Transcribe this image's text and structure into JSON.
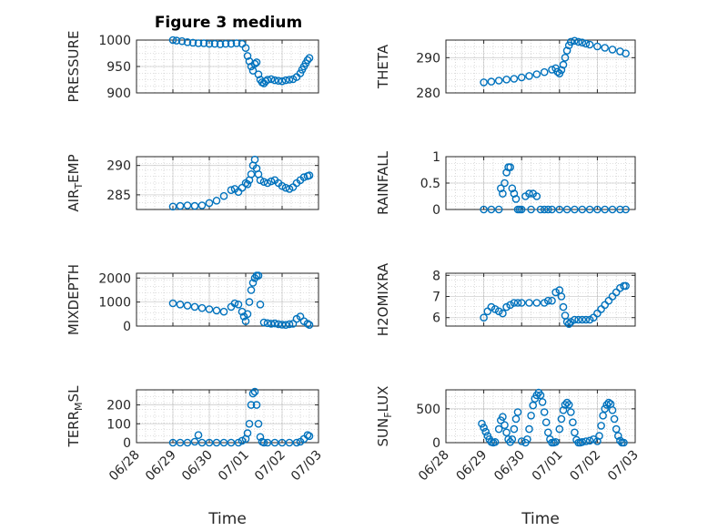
{
  "title": "Figure 3 medium",
  "xlabel": "Time",
  "colors": {
    "marker": "#0072bd",
    "axis": "#262626",
    "grid": "#b0b0b0"
  },
  "chart_data": [
    {
      "type": "scatter",
      "ylabel": "PRESSURE",
      "ylim": [
        900,
        1000
      ],
      "yticks": [
        "900",
        "950",
        "1000"
      ],
      "xlim": [
        "06/28",
        "07/03"
      ],
      "xticks": [],
      "grid": true,
      "x": [
        1.0,
        1.1,
        1.25,
        1.4,
        1.55,
        1.7,
        1.85,
        2.0,
        2.15,
        2.3,
        2.45,
        2.6,
        2.75,
        2.9,
        3.0,
        3.05,
        3.1,
        3.15,
        3.2,
        3.25,
        3.3,
        3.35,
        3.4,
        3.45,
        3.5,
        3.55,
        3.6,
        3.7,
        3.8,
        3.9,
        4.0,
        4.1,
        4.2,
        4.3,
        4.4,
        4.5,
        4.55,
        4.6,
        4.65,
        4.7,
        4.75
      ],
      "y": [
        1000,
        999,
        998,
        996,
        995,
        994,
        994,
        993,
        993,
        992,
        993,
        993,
        994,
        993,
        985,
        970,
        960,
        950,
        942,
        955,
        958,
        935,
        925,
        920,
        918,
        922,
        925,
        926,
        924,
        923,
        922,
        924,
        925,
        926,
        930,
        937,
        944,
        950,
        956,
        962,
        966
      ]
    },
    {
      "type": "scatter",
      "ylabel": "THETA",
      "ylim": [
        280,
        295
      ],
      "yticks": [
        "280",
        "290"
      ],
      "xlim": [
        "06/28",
        "07/03"
      ],
      "xticks": [],
      "grid": true,
      "x": [
        1.0,
        1.2,
        1.4,
        1.6,
        1.8,
        2.0,
        2.2,
        2.4,
        2.6,
        2.8,
        2.9,
        2.95,
        3.0,
        3.05,
        3.1,
        3.15,
        3.2,
        3.25,
        3.3,
        3.4,
        3.5,
        3.6,
        3.7,
        3.8,
        4.0,
        4.2,
        4.4,
        4.6,
        4.75
      ],
      "y": [
        283,
        283.2,
        283.5,
        283.8,
        284,
        284.4,
        284.8,
        285.3,
        285.9,
        286.6,
        287,
        286,
        285.5,
        286.5,
        288,
        290,
        292,
        293.5,
        294.5,
        294.8,
        294.5,
        294.3,
        294,
        293.7,
        293.2,
        292.8,
        292.3,
        291.8,
        291.2
      ]
    },
    {
      "type": "scatter",
      "ylabel": "AIR_TEMP",
      "ylim": [
        282.5,
        291.5
      ],
      "yticks": [
        "285",
        "290"
      ],
      "xlim": [
        "06/28",
        "07/03"
      ],
      "xticks": [],
      "grid": true,
      "x": [
        1.0,
        1.2,
        1.4,
        1.6,
        1.8,
        2.0,
        2.2,
        2.4,
        2.6,
        2.7,
        2.8,
        2.9,
        3.0,
        3.05,
        3.1,
        3.15,
        3.2,
        3.25,
        3.3,
        3.35,
        3.4,
        3.5,
        3.6,
        3.7,
        3.8,
        3.9,
        4.0,
        4.1,
        4.2,
        4.3,
        4.4,
        4.5,
        4.6,
        4.7,
        4.75
      ],
      "y": [
        283,
        283.1,
        283.2,
        283.1,
        283.2,
        283.6,
        284,
        284.8,
        285.8,
        286,
        285.5,
        286.2,
        287,
        286.8,
        287.5,
        288.5,
        290,
        291,
        289.5,
        288.5,
        287.5,
        287.2,
        287,
        287.3,
        287.5,
        287,
        286.5,
        286.2,
        286,
        286.3,
        287,
        287.5,
        288,
        288.2,
        288.3
      ]
    },
    {
      "type": "scatter",
      "ylabel": "RAINFALL",
      "ylim": [
        0,
        1
      ],
      "yticks": [
        "0",
        "0.5",
        "1"
      ],
      "xlim": [
        "06/28",
        "07/03"
      ],
      "xticks": [],
      "grid": true,
      "x": [
        1.0,
        1.2,
        1.4,
        1.45,
        1.5,
        1.55,
        1.6,
        1.65,
        1.7,
        1.75,
        1.8,
        1.85,
        1.9,
        1.95,
        2.0,
        2.1,
        2.2,
        2.25,
        2.3,
        2.4,
        2.5,
        2.6,
        2.7,
        2.8,
        3.0,
        3.2,
        3.4,
        3.6,
        3.8,
        4.0,
        4.2,
        4.4,
        4.6,
        4.75
      ],
      "y": [
        0,
        0,
        0,
        0.4,
        0.3,
        0.5,
        0.7,
        0.8,
        0.8,
        0.4,
        0.3,
        0.2,
        0,
        0,
        0,
        0.25,
        0.3,
        0,
        0.3,
        0.25,
        0,
        0,
        0,
        0,
        0,
        0,
        0,
        0,
        0,
        0,
        0,
        0,
        0,
        0
      ]
    },
    {
      "type": "scatter",
      "ylabel": "MIXDEPTH",
      "ylim": [
        0,
        2200
      ],
      "yticks": [
        "0",
        "1000",
        "2000"
      ],
      "xlim": [
        "06/28",
        "07/03"
      ],
      "xticks": [],
      "grid": true,
      "x": [
        1.0,
        1.2,
        1.4,
        1.6,
        1.8,
        2.0,
        2.2,
        2.4,
        2.6,
        2.7,
        2.8,
        2.9,
        2.95,
        3.0,
        3.05,
        3.1,
        3.15,
        3.2,
        3.25,
        3.3,
        3.35,
        3.4,
        3.5,
        3.6,
        3.7,
        3.8,
        3.9,
        4.0,
        4.1,
        4.2,
        4.3,
        4.4,
        4.5,
        4.6,
        4.7,
        4.75
      ],
      "y": [
        950,
        900,
        850,
        800,
        750,
        700,
        650,
        600,
        800,
        950,
        900,
        600,
        400,
        200,
        500,
        1000,
        1500,
        1800,
        2000,
        2100,
        2100,
        900,
        150,
        120,
        100,
        110,
        80,
        60,
        50,
        80,
        100,
        300,
        400,
        200,
        100,
        50
      ]
    },
    {
      "type": "scatter",
      "ylabel": "H2OMIXRA",
      "ylim": [
        5.6,
        8.1
      ],
      "yticks": [
        "6",
        "7",
        "8"
      ],
      "xlim": [
        "06/28",
        "07/03"
      ],
      "xticks": [],
      "grid": true,
      "x": [
        1.0,
        1.1,
        1.2,
        1.3,
        1.4,
        1.5,
        1.6,
        1.7,
        1.8,
        1.9,
        2.0,
        2.2,
        2.4,
        2.6,
        2.7,
        2.8,
        2.9,
        3.0,
        3.05,
        3.1,
        3.15,
        3.2,
        3.25,
        3.3,
        3.4,
        3.5,
        3.6,
        3.7,
        3.8,
        3.9,
        4.0,
        4.1,
        4.2,
        4.3,
        4.4,
        4.5,
        4.6,
        4.7,
        4.75
      ],
      "y": [
        6,
        6.3,
        6.5,
        6.4,
        6.3,
        6.2,
        6.5,
        6.6,
        6.7,
        6.7,
        6.7,
        6.7,
        6.7,
        6.7,
        6.8,
        6.8,
        7.2,
        7.3,
        7.0,
        6.5,
        6.1,
        5.8,
        5.7,
        5.8,
        5.9,
        5.9,
        5.9,
        5.9,
        5.9,
        6.0,
        6.2,
        6.4,
        6.6,
        6.8,
        7.0,
        7.2,
        7.4,
        7.5,
        7.5
      ]
    },
    {
      "type": "scatter",
      "ylabel": "TERR_MSL",
      "ylim": [
        0,
        280
      ],
      "yticks": [
        "0",
        "100",
        "200"
      ],
      "xlim": [
        "06/28",
        "07/03"
      ],
      "xticks": [
        "06/28",
        "06/29",
        "06/30",
        "07/01",
        "07/02",
        "07/03"
      ],
      "grid": true,
      "x": [
        1.0,
        1.2,
        1.4,
        1.6,
        1.7,
        1.8,
        2.0,
        2.2,
        2.4,
        2.6,
        2.8,
        2.9,
        3.0,
        3.05,
        3.1,
        3.15,
        3.2,
        3.25,
        3.3,
        3.35,
        3.4,
        3.45,
        3.5,
        3.6,
        3.8,
        4.0,
        4.2,
        4.4,
        4.5,
        4.6,
        4.7,
        4.75
      ],
      "y": [
        0,
        0,
        0,
        5,
        40,
        0,
        0,
        0,
        0,
        0,
        0,
        10,
        20,
        50,
        100,
        200,
        260,
        270,
        200,
        100,
        30,
        5,
        0,
        0,
        0,
        0,
        0,
        0,
        5,
        20,
        40,
        35
      ]
    },
    {
      "type": "scatter",
      "ylabel": "SUN_FLUX",
      "ylim": [
        0,
        780
      ],
      "yticks": [
        "0",
        "500"
      ],
      "xlim": [
        "06/28",
        "07/03"
      ],
      "xticks": [
        "06/28",
        "06/29",
        "06/30",
        "07/01",
        "07/02",
        "07/03"
      ],
      "grid": true,
      "x": [
        0.95,
        1.0,
        1.05,
        1.1,
        1.15,
        1.2,
        1.25,
        1.3,
        1.4,
        1.45,
        1.5,
        1.55,
        1.6,
        1.65,
        1.7,
        1.75,
        1.8,
        1.85,
        1.9,
        2.0,
        2.1,
        2.15,
        2.2,
        2.25,
        2.3,
        2.35,
        2.4,
        2.45,
        2.5,
        2.55,
        2.6,
        2.65,
        2.7,
        2.75,
        2.8,
        2.85,
        2.9,
        3.0,
        3.05,
        3.1,
        3.15,
        3.2,
        3.25,
        3.3,
        3.35,
        3.4,
        3.45,
        3.5,
        3.55,
        3.6,
        3.7,
        3.8,
        3.9,
        4.0,
        4.05,
        4.1,
        4.15,
        4.2,
        4.25,
        4.3,
        4.35,
        4.4,
        4.45,
        4.5,
        4.55,
        4.6,
        4.65,
        4.7
      ],
      "y": [
        280,
        220,
        160,
        100,
        50,
        10,
        0,
        10,
        200,
        330,
        380,
        260,
        150,
        50,
        10,
        50,
        200,
        350,
        450,
        20,
        0,
        50,
        200,
        400,
        550,
        650,
        700,
        740,
        700,
        600,
        450,
        300,
        150,
        50,
        0,
        0,
        10,
        200,
        350,
        480,
        560,
        590,
        560,
        450,
        300,
        150,
        40,
        0,
        0,
        10,
        20,
        30,
        50,
        20,
        100,
        250,
        400,
        500,
        560,
        590,
        570,
        480,
        350,
        200,
        100,
        30,
        0,
        0
      ]
    }
  ]
}
